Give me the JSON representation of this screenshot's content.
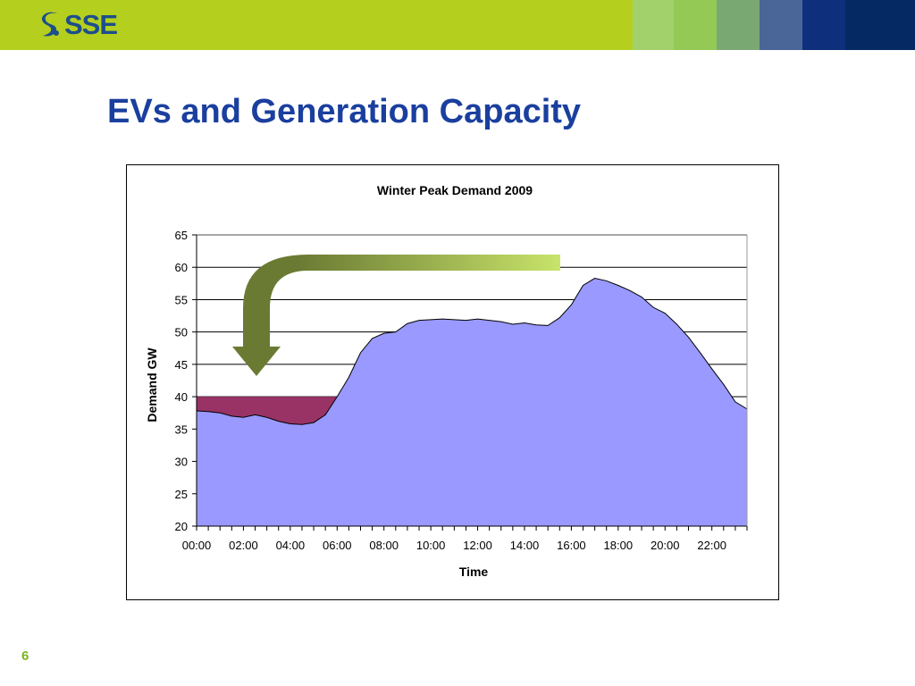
{
  "header": {
    "logo_text": "SSE",
    "band_colors": [
      "#b5cf1e",
      "#a2d16c",
      "#94c955",
      "#7aa872",
      "#4a6598",
      "#0e2f7c",
      "#052a63"
    ]
  },
  "slide": {
    "title": "EVs and Generation Capacity",
    "page_number": "6"
  },
  "colors": {
    "demand_fill": "#9999ff",
    "shaded_band": "#993366",
    "arrow_dark": "#6b7a33",
    "arrow_light": "#c8e46a",
    "title_blue": "#1a3f9e"
  },
  "chart_data": {
    "type": "area",
    "title": "Winter Peak Demand 2009",
    "xlabel": "Time",
    "ylabel": "Demand GW",
    "ylim": [
      20,
      65
    ],
    "yticks": [
      20,
      25,
      30,
      35,
      40,
      45,
      50,
      55,
      60,
      65
    ],
    "xlim_hours": [
      0,
      23.5
    ],
    "xtick_labels": [
      "00:00",
      "02:00",
      "04:00",
      "06:00",
      "08:00",
      "10:00",
      "12:00",
      "14:00",
      "16:00",
      "18:00",
      "20:00",
      "22:00"
    ],
    "grid": "horizontal",
    "legend": "none",
    "series": [
      {
        "x": [
          "00:00",
          "00:30",
          "01:00",
          "01:30",
          "02:00",
          "02:30",
          "03:00",
          "03:30",
          "04:00",
          "04:30",
          "05:00",
          "05:30",
          "06:00",
          "06:30",
          "07:00",
          "07:30",
          "08:00",
          "08:30",
          "09:00",
          "09:30",
          "10:00",
          "10:30",
          "11:00",
          "11:30",
          "12:00",
          "12:30",
          "13:00",
          "13:30",
          "14:00",
          "14:30",
          "15:00",
          "15:30",
          "16:00",
          "16:30",
          "17:00",
          "17:30",
          "18:00",
          "18:30",
          "19:00",
          "19:30",
          "20:00",
          "20:30",
          "21:00",
          "21:30",
          "22:00",
          "22:30",
          "23:00",
          "23:30"
        ],
        "values": [
          37.8,
          37.7,
          37.5,
          37.0,
          36.8,
          37.2,
          36.8,
          36.2,
          35.8,
          35.7,
          36.0,
          37.2,
          40.0,
          43.0,
          46.8,
          49.0,
          49.8,
          50.0,
          51.3,
          51.8,
          51.9,
          52.0,
          51.9,
          51.8,
          52.0,
          51.8,
          51.6,
          51.2,
          51.4,
          51.1,
          51.0,
          52.2,
          54.2,
          57.2,
          58.3,
          57.9,
          57.2,
          56.4,
          55.4,
          53.8,
          52.9,
          51.2,
          49.2,
          46.8,
          44.3,
          41.9,
          39.2,
          38.1
        ]
      }
    ],
    "shaded_region": {
      "y_top": 40,
      "x_start": "00:00",
      "x_end": "06:00"
    }
  }
}
